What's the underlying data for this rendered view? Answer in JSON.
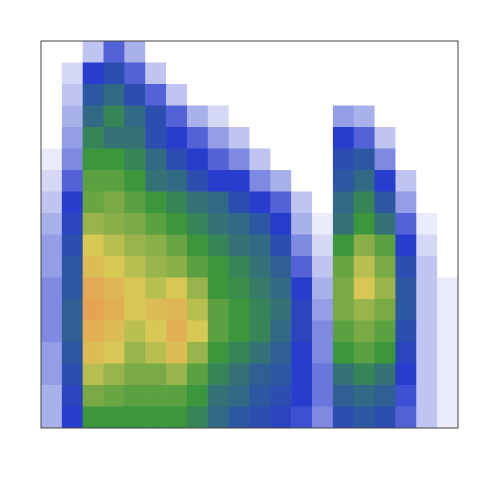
{
  "chart_data": {
    "type": "heatmap",
    "tick_labels": false,
    "zlim": [
      0,
      4
    ],
    "cells": [
      [
        0,
        0,
        0.3,
        0.8,
        0.4,
        0,
        0,
        0,
        0,
        0,
        0,
        0,
        0,
        0,
        0,
        0,
        0,
        0,
        0,
        0
      ],
      [
        0,
        0.2,
        1,
        1.2,
        0.8,
        0.3,
        0,
        0,
        0,
        0,
        0,
        0,
        0,
        0,
        0,
        0,
        0,
        0,
        0,
        0
      ],
      [
        0,
        0.3,
        1.3,
        1.5,
        1.2,
        0.8,
        0.3,
        0,
        0,
        0,
        0,
        0,
        0,
        0,
        0,
        0,
        0,
        0,
        0,
        0
      ],
      [
        0,
        0.4,
        1.5,
        1.8,
        1.5,
        1.2,
        0.8,
        0.4,
        0.2,
        0,
        0,
        0,
        0,
        0,
        0.5,
        0.4,
        0,
        0,
        0,
        0
      ],
      [
        0,
        0.5,
        1.8,
        1.6,
        1.6,
        1.2,
        1,
        0.8,
        0.5,
        0.3,
        0,
        0,
        0,
        0,
        1,
        0.8,
        0.3,
        0,
        0,
        0
      ],
      [
        0.1,
        0.6,
        2,
        2,
        1.8,
        1.5,
        1.2,
        1,
        0.8,
        0.6,
        0.3,
        0,
        0,
        0,
        1.2,
        1.3,
        0.6,
        0,
        0,
        0
      ],
      [
        0.2,
        0.8,
        2.2,
        2.2,
        2,
        1.6,
        1.5,
        1.2,
        1,
        1,
        0.6,
        0.4,
        0,
        0,
        1.3,
        1.5,
        1,
        0.3,
        0,
        0
      ],
      [
        0.3,
        1,
        2.3,
        2.4,
        2.2,
        2,
        1.8,
        1.6,
        1.5,
        1.2,
        1,
        0.8,
        0.3,
        0,
        1.5,
        1.8,
        1.3,
        0.5,
        0,
        0
      ],
      [
        0.4,
        1.1,
        2.6,
        2.5,
        2.4,
        2.2,
        2,
        1.8,
        1.6,
        1.5,
        1.3,
        1,
        0.4,
        0.1,
        1.6,
        2,
        1.6,
        0.8,
        0.1,
        0
      ],
      [
        0.5,
        1.2,
        3,
        2.8,
        2.6,
        2.5,
        2.3,
        2,
        1.8,
        1.6,
        1.5,
        1.2,
        0.6,
        0.2,
        2,
        2.5,
        2.2,
        1,
        0.2,
        0
      ],
      [
        0.5,
        1.3,
        3.2,
        3,
        2.8,
        2.6,
        2.5,
        2.2,
        2,
        1.8,
        1.6,
        1.4,
        0.8,
        0.3,
        2.3,
        2.8,
        2.4,
        1.2,
        0.3,
        0
      ],
      [
        0.6,
        1.3,
        3.5,
        3.3,
        3,
        2.8,
        3,
        2.6,
        2,
        1.9,
        1.7,
        1.5,
        1,
        0.4,
        2.4,
        3,
        2.6,
        1.3,
        0.3,
        0.1
      ],
      [
        0.6,
        1.4,
        3.6,
        3.4,
        3,
        3.2,
        3.3,
        2.8,
        2.2,
        2,
        1.8,
        1.6,
        1.1,
        0.5,
        2.4,
        2.6,
        2.4,
        1.3,
        0.3,
        0.1
      ],
      [
        0.6,
        1.4,
        3.4,
        3.2,
        2.8,
        3,
        3.4,
        3,
        2.2,
        2,
        1.8,
        1.5,
        1.1,
        0.6,
        2.2,
        2.4,
        2.2,
        1.2,
        0.3,
        0.1
      ],
      [
        0.5,
        1.3,
        3.2,
        3,
        2.6,
        2.8,
        3.2,
        2.6,
        2,
        1.8,
        1.6,
        1.4,
        1,
        0.6,
        2,
        2.2,
        2,
        1.1,
        0.3,
        0.1
      ],
      [
        0.5,
        1.2,
        2.8,
        2.6,
        2.4,
        2.4,
        2.6,
        2.2,
        1.8,
        1.6,
        1.4,
        1.3,
        1,
        0.7,
        1.6,
        1.8,
        1.6,
        1,
        0.3,
        0.1
      ],
      [
        0.4,
        1.1,
        2.4,
        2.3,
        2.2,
        2.2,
        2.2,
        2,
        1.6,
        1.5,
        1.3,
        1.2,
        1,
        0.7,
        1.4,
        1.5,
        1.4,
        0.9,
        0.3,
        0.1
      ],
      [
        0.4,
        1,
        2,
        2,
        2,
        2,
        2,
        1.8,
        1.5,
        1.3,
        1.2,
        1.1,
        0.9,
        0.6,
        1.2,
        1.3,
        1.2,
        0.8,
        0.3,
        0.1
      ]
    ]
  }
}
